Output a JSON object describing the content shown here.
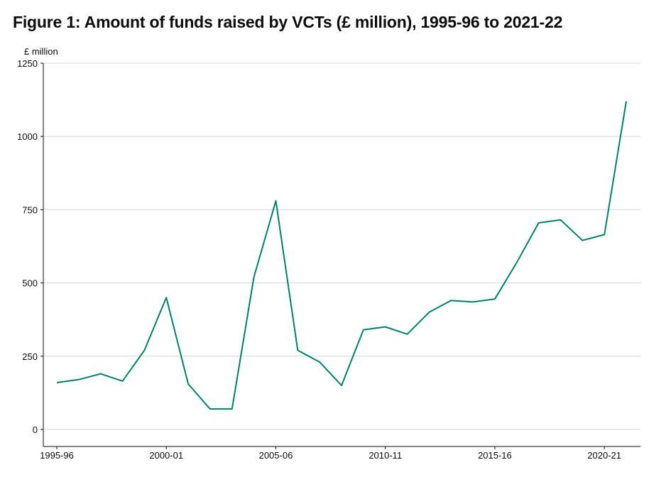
{
  "figure": {
    "title": "Figure 1: Amount of funds raised by VCTs (£ million), 1995-96 to 2021-22"
  },
  "chart_data": {
    "type": "line",
    "title": "Figure 1: Amount of funds raised by VCTs (£ million), 1995-96 to 2021-22",
    "ylabel": "£ million",
    "xlabel": "",
    "ylim": [
      0,
      1250
    ],
    "yticks": [
      0,
      250,
      500,
      750,
      1000,
      1250
    ],
    "grid": true,
    "x_tick_labels": [
      "1995-96",
      "2000-01",
      "2005-06",
      "2010-11",
      "2015-16",
      "2020-21"
    ],
    "x_tick_positions": [
      0,
      5,
      10,
      15,
      20,
      25
    ],
    "line_color": "#00806a",
    "x": [
      "1995-96",
      "1996-97",
      "1997-98",
      "1998-99",
      "1999-00",
      "2000-01",
      "2001-02",
      "2002-03",
      "2003-04",
      "2004-05",
      "2005-06",
      "2006-07",
      "2007-08",
      "2008-09",
      "2009-10",
      "2010-11",
      "2011-12",
      "2012-13",
      "2013-14",
      "2014-15",
      "2015-16",
      "2016-17",
      "2017-18",
      "2018-19",
      "2019-20",
      "2020-21",
      "2021-22"
    ],
    "values": [
      160,
      170,
      190,
      165,
      270,
      450,
      155,
      70,
      70,
      520,
      780,
      270,
      230,
      150,
      340,
      350,
      325,
      400,
      440,
      435,
      445,
      570,
      705,
      715,
      645,
      665,
      1120
    ]
  }
}
